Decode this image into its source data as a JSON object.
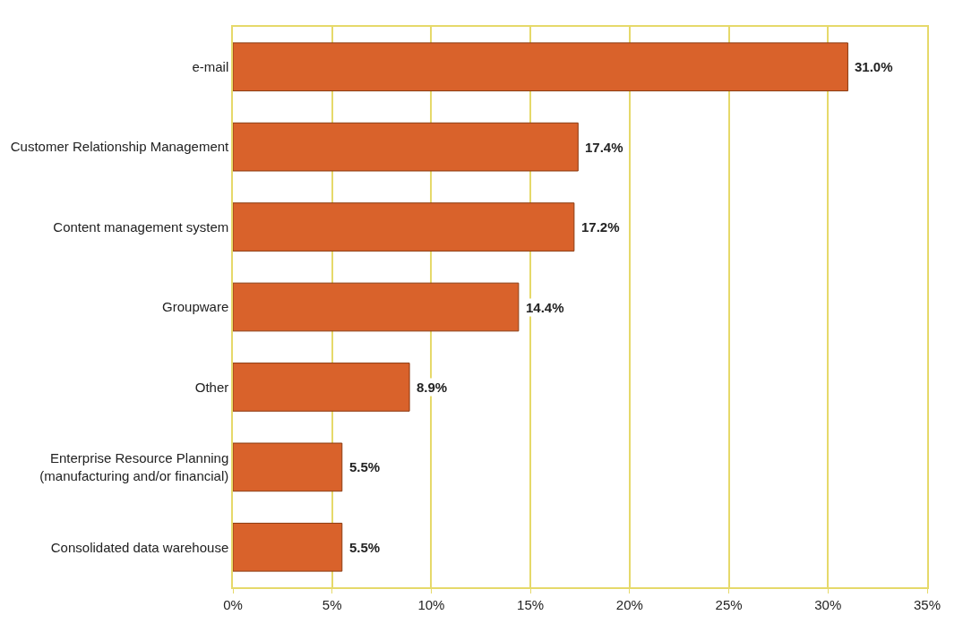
{
  "chart_data": {
    "type": "bar",
    "orientation": "horizontal",
    "categories": [
      "e-mail",
      "Customer Relationship Management",
      "Content management system",
      "Groupware",
      "Other",
      "Enterprise Resource Planning\n(manufacturing and/or financial)",
      "Consolidated data warehouse"
    ],
    "values": [
      31.0,
      17.4,
      17.2,
      14.4,
      8.9,
      5.5,
      5.5
    ],
    "value_labels": [
      "31.0%",
      "17.4%",
      "17.2%",
      "14.4%",
      "8.9%",
      "5.5%",
      "5.5%"
    ],
    "color": "#d9622b",
    "xlim": [
      0,
      35
    ],
    "xticks": [
      {
        "value": 0,
        "label": "0%"
      },
      {
        "value": 5,
        "label": "5%"
      },
      {
        "value": 10,
        "label": "10%"
      },
      {
        "value": 15,
        "label": "15%"
      },
      {
        "value": 20,
        "label": "20%"
      },
      {
        "value": 25,
        "label": "25%"
      },
      {
        "value": 30,
        "label": "30%"
      },
      {
        "value": 35,
        "label": "35%"
      }
    ],
    "grid": "x",
    "legend": false
  }
}
